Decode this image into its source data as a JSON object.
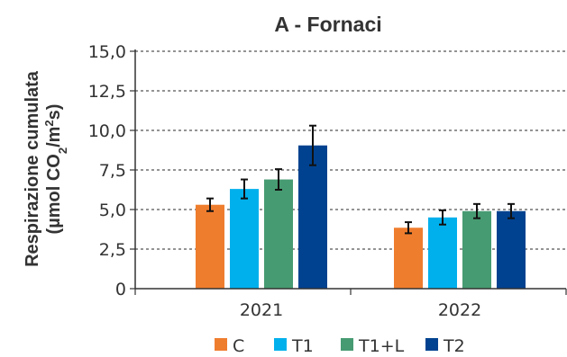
{
  "chart_data": {
    "type": "bar",
    "title": "A - Fornaci",
    "ylabel_line1": "Respirazione cumulata",
    "ylabel_line2": {
      "prefix": "(µmol CO",
      "sub": "2",
      "mid": "/m",
      "sup": "2",
      "suffix": "s)"
    },
    "ylim": [
      0,
      15
    ],
    "yticks": [
      0,
      2.5,
      5,
      7.5,
      10,
      12.5,
      15
    ],
    "ytick_labels": [
      "0",
      "2,5",
      "5,0",
      "7,5",
      "10,0",
      "12,5",
      "15,0"
    ],
    "grid": "horizontal-dashed",
    "legend_position": "bottom",
    "categories": [
      "2021",
      "2022"
    ],
    "series": [
      {
        "name": "C",
        "color": "#ef7d2e",
        "values": [
          5.3,
          3.85
        ],
        "errors": [
          0.4,
          0.35
        ]
      },
      {
        "name": "T1",
        "color": "#00b0ec",
        "values": [
          6.3,
          4.5
        ],
        "errors": [
          0.6,
          0.45
        ]
      },
      {
        "name": "T1+L",
        "color": "#479b72",
        "values": [
          6.9,
          4.9
        ],
        "errors": [
          0.65,
          0.45
        ]
      },
      {
        "name": "T2",
        "color": "#00428f",
        "values": [
          9.05,
          4.9
        ],
        "errors": [
          1.25,
          0.45
        ]
      }
    ]
  }
}
